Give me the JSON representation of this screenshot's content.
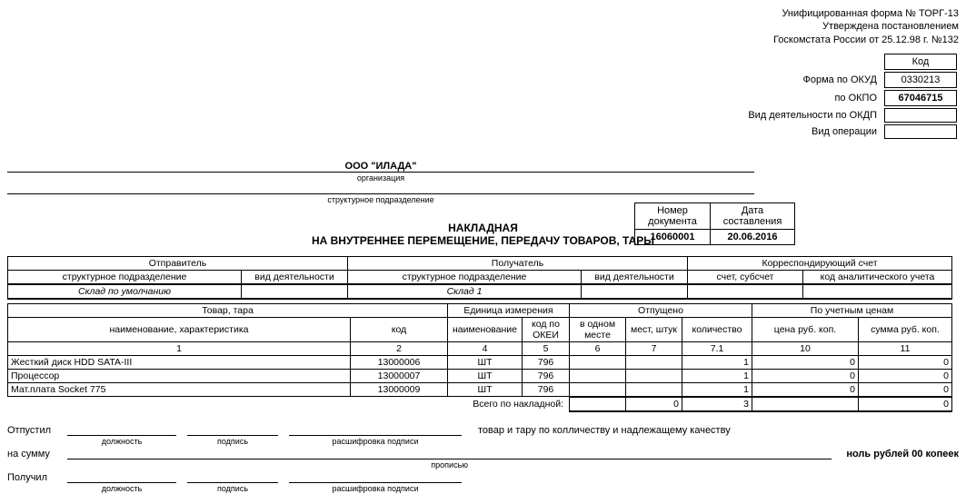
{
  "header": {
    "line1": "Унифицированная форма № ТОРГ-13",
    "line2": "Утверждена постановлением",
    "line3": "Госкомстата России от 25.12.98 г. №132"
  },
  "codes": {
    "kod_label": "Код",
    "okud_label": "Форма по ОКУД",
    "okud": "0330213",
    "okpo_label": "по ОКПО",
    "okpo": "67046715",
    "okdp_label": "Вид деятельности по ОКДП",
    "okdp": "",
    "oper_label": "Вид операции",
    "oper": ""
  },
  "org": {
    "name": "ООО \"ИЛАДА\"",
    "sub": "организация",
    "sub2": "структурное подразделение"
  },
  "doc": {
    "num_label": "Номер документа",
    "date_label": "Дата составления",
    "num": "16060001",
    "date": "20.06.2016",
    "title1": "НАКЛАДНАЯ",
    "title2": "НА ВНУТРЕННЕЕ ПЕРЕМЕЩЕНИЕ, ПЕРЕДАЧУ ТОВАРОВ, ТАРЫ"
  },
  "senders": {
    "sender_h": "Отправитель",
    "recv_h": "Получатель",
    "corr_h": "Корреспондирующий счет",
    "struct_h": "структурное подразделение",
    "act_h": "вид деятельности",
    "acc_h": "счет, субсчет",
    "anal_h": "код аналитического учета",
    "sender": "Склад по умолчанию",
    "recv": "Склад 1"
  },
  "cols": {
    "goods_h": "Товар, тара",
    "unit_h": "Единица измерения",
    "rel_h": "Отпущено",
    "price_h": "По учетным ценам",
    "name_h": "наименование, характеристика",
    "code_h": "код",
    "unit_name_h": "наименование",
    "okei_h": "код по ОКЕИ",
    "inone_h": "в одном месте",
    "places_h": "мест, штук",
    "qty_h": "количество",
    "price_col": "цена руб. коп.",
    "sum_col": "сумма руб. коп.",
    "n1": "1",
    "n2": "2",
    "n4": "4",
    "n5": "5",
    "n6": "6",
    "n7": "7",
    "n71": "7.1",
    "n10": "10",
    "n11": "11"
  },
  "items": [
    {
      "name": "Жесткий диск HDD SATA-III",
      "code": "13000006",
      "unit": "ШТ",
      "okei": "796",
      "inone": "",
      "places": "",
      "qty": "1",
      "price": "0",
      "sum": "0"
    },
    {
      "name": "Процессор",
      "code": "13000007",
      "unit": "ШТ",
      "okei": "796",
      "inone": "",
      "places": "",
      "qty": "1",
      "price": "0",
      "sum": "0"
    },
    {
      "name": "Мат.плата Socket 775",
      "code": "13000009",
      "unit": "ШТ",
      "okei": "796",
      "inone": "",
      "places": "",
      "qty": "1",
      "price": "0",
      "sum": "0"
    }
  ],
  "totals": {
    "label": "Всего по накладной:",
    "places": "0",
    "qty": "3",
    "sum": "0"
  },
  "sign": {
    "released": "Отпустил",
    "tail": "товар и тару по колличеству и надлежащему качеству",
    "on_sum": "на сумму",
    "sum_text": "ноль рублей 00 копеек",
    "propis": "прописью",
    "received": "Получил",
    "pos": "должность",
    "sig": "подпись",
    "decode": "расшифровка подписи"
  }
}
